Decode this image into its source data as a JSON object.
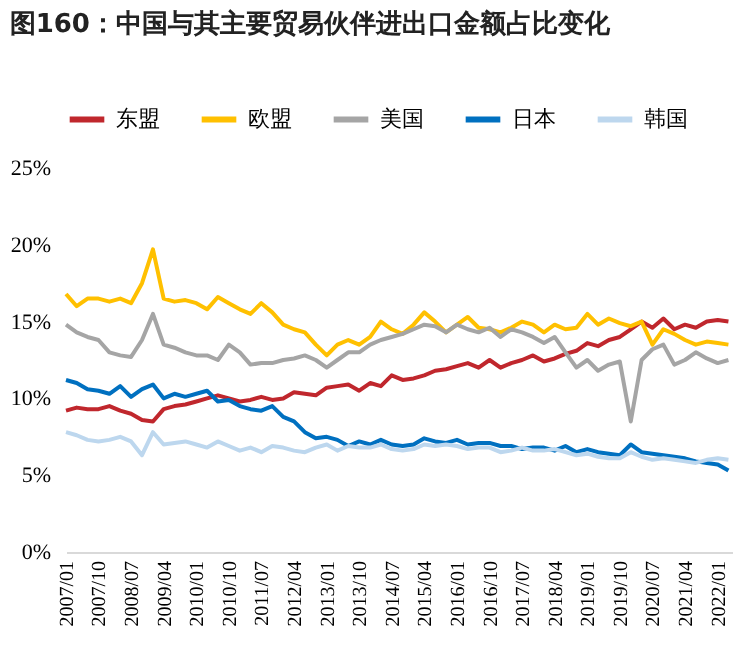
{
  "chart_data": {
    "type": "line",
    "title": "图160：中国与其主要贸易伙伴进出口金额占比变化",
    "x": [
      "2007-01",
      "2007-04",
      "2007-07",
      "2007-10",
      "2008-01",
      "2008-04",
      "2008-07",
      "2008-10",
      "2009-01",
      "2009-04",
      "2009-07",
      "2009-10",
      "2010-01",
      "2010-04",
      "2010-07",
      "2010-10",
      "2011-01",
      "2011-04",
      "2011-07",
      "2011-10",
      "2012-01",
      "2012-04",
      "2012-07",
      "2012-10",
      "2013-01",
      "2013-04",
      "2013-07",
      "2013-10",
      "2014-01",
      "2014-04",
      "2014-07",
      "2014-10",
      "2015-01",
      "2015-04",
      "2015-07",
      "2015-10",
      "2016-01",
      "2016-04",
      "2016-07",
      "2016-10",
      "2017-01",
      "2017-04",
      "2017-07",
      "2017-10",
      "2018-01",
      "2018-04",
      "2018-07",
      "2018-10",
      "2019-01",
      "2019-04",
      "2019-07",
      "2019-10",
      "2020-01",
      "2020-04",
      "2020-07",
      "2020-10",
      "2021-01",
      "2021-04",
      "2021-07",
      "2021-10",
      "2022-01",
      "2022-04"
    ],
    "series": [
      {
        "name": "东盟",
        "color": "#c0272d",
        "values": [
          9.2,
          9.4,
          9.3,
          9.3,
          9.5,
          9.2,
          9.0,
          8.6,
          8.5,
          9.3,
          9.5,
          9.6,
          9.8,
          10.0,
          10.2,
          10.0,
          9.8,
          9.9,
          10.1,
          9.9,
          10.0,
          10.4,
          10.3,
          10.2,
          10.7,
          10.8,
          10.9,
          10.5,
          11.0,
          10.8,
          11.5,
          11.2,
          11.3,
          11.5,
          11.8,
          11.9,
          12.1,
          12.3,
          12.0,
          12.5,
          12.0,
          12.3,
          12.5,
          12.8,
          12.4,
          12.6,
          12.9,
          13.1,
          13.6,
          13.4,
          13.8,
          14.0,
          14.5,
          15.0,
          14.6,
          15.2,
          14.5,
          14.8,
          14.6,
          15.0,
          15.1,
          15.0
        ]
      },
      {
        "name": "欧盟",
        "color": "#ffc000",
        "values": [
          16.8,
          16.0,
          16.5,
          16.5,
          16.3,
          16.5,
          16.2,
          17.5,
          19.7,
          16.5,
          16.3,
          16.4,
          16.2,
          15.8,
          16.6,
          16.2,
          15.8,
          15.5,
          16.2,
          15.6,
          14.8,
          14.5,
          14.3,
          13.5,
          12.8,
          13.5,
          13.8,
          13.5,
          14.0,
          15.0,
          14.5,
          14.2,
          14.8,
          15.6,
          15.0,
          14.3,
          14.8,
          15.3,
          14.6,
          14.5,
          14.3,
          14.6,
          15.0,
          14.8,
          14.3,
          14.8,
          14.5,
          14.6,
          15.5,
          14.8,
          15.2,
          14.9,
          14.7,
          15.0,
          13.5,
          14.5,
          14.2,
          13.8,
          13.5,
          13.7,
          13.6,
          13.5
        ]
      },
      {
        "name": "美国",
        "color": "#a5a5a5",
        "values": [
          14.8,
          14.3,
          14.0,
          13.8,
          13.0,
          12.8,
          12.7,
          13.8,
          15.5,
          13.5,
          13.3,
          13.0,
          12.8,
          12.8,
          12.5,
          13.5,
          13.0,
          12.2,
          12.3,
          12.3,
          12.5,
          12.6,
          12.8,
          12.5,
          12.0,
          12.5,
          13.0,
          13.0,
          13.5,
          13.8,
          14.0,
          14.2,
          14.5,
          14.8,
          14.7,
          14.3,
          14.8,
          14.5,
          14.3,
          14.6,
          14.0,
          14.5,
          14.3,
          14.0,
          13.6,
          14.0,
          13.0,
          12.0,
          12.5,
          11.8,
          12.2,
          12.4,
          8.5,
          12.5,
          13.2,
          13.5,
          12.2,
          12.5,
          13.0,
          12.6,
          12.3,
          12.5
        ]
      },
      {
        "name": "日本",
        "color": "#0070c0",
        "values": [
          11.2,
          11.0,
          10.6,
          10.5,
          10.3,
          10.8,
          10.1,
          10.6,
          10.9,
          10.0,
          10.3,
          10.1,
          10.3,
          10.5,
          9.8,
          9.9,
          9.5,
          9.3,
          9.2,
          9.5,
          8.8,
          8.5,
          7.8,
          7.4,
          7.5,
          7.3,
          6.9,
          7.2,
          7.0,
          7.3,
          7.0,
          6.9,
          7.0,
          7.4,
          7.2,
          7.1,
          7.3,
          7.0,
          7.1,
          7.1,
          6.9,
          6.9,
          6.7,
          6.8,
          6.8,
          6.6,
          6.9,
          6.5,
          6.7,
          6.5,
          6.4,
          6.3,
          7.0,
          6.5,
          6.4,
          6.3,
          6.2,
          6.1,
          5.9,
          5.8,
          5.7,
          5.3
        ]
      },
      {
        "name": "韩国",
        "color": "#bdd7ee",
        "values": [
          7.8,
          7.6,
          7.3,
          7.2,
          7.3,
          7.5,
          7.2,
          6.3,
          7.8,
          7.0,
          7.1,
          7.2,
          7.0,
          6.8,
          7.2,
          6.9,
          6.6,
          6.8,
          6.5,
          6.9,
          6.8,
          6.6,
          6.5,
          6.8,
          7.0,
          6.6,
          6.9,
          6.8,
          6.8,
          7.0,
          6.7,
          6.6,
          6.7,
          7.0,
          6.9,
          7.0,
          6.9,
          6.7,
          6.8,
          6.8,
          6.5,
          6.6,
          6.8,
          6.6,
          6.6,
          6.7,
          6.5,
          6.3,
          6.4,
          6.2,
          6.1,
          6.1,
          6.5,
          6.2,
          6.0,
          6.1,
          6.0,
          5.9,
          5.8,
          6.0,
          6.1,
          6.0
        ]
      }
    ],
    "xlim": [
      "2007-01",
      "2022-05"
    ],
    "xticks": [
      {
        "value": "2007-01",
        "label": "2007/01"
      },
      {
        "value": "2007-10",
        "label": "2007/10"
      },
      {
        "value": "2008-07",
        "label": "2008/07"
      },
      {
        "value": "2009-04",
        "label": "2009/04"
      },
      {
        "value": "2010-01",
        "label": "2010/01"
      },
      {
        "value": "2010-10",
        "label": "2010/10"
      },
      {
        "value": "2011-07",
        "label": "2011/07"
      },
      {
        "value": "2012-04",
        "label": "2012/04"
      },
      {
        "value": "2013-01",
        "label": "2013/01"
      },
      {
        "value": "2013-10",
        "label": "2013/10"
      },
      {
        "value": "2014-07",
        "label": "2014/07"
      },
      {
        "value": "2015-04",
        "label": "2015/04"
      },
      {
        "value": "2016-01",
        "label": "2016/01"
      },
      {
        "value": "2016-10",
        "label": "2016/10"
      },
      {
        "value": "2017-07",
        "label": "2017/07"
      },
      {
        "value": "2018-04",
        "label": "2018/04"
      },
      {
        "value": "2019-01",
        "label": "2019/01"
      },
      {
        "value": "2019-10",
        "label": "2019/10"
      },
      {
        "value": "2020-07",
        "label": "2020/07"
      },
      {
        "value": "2021-04",
        "label": "2021/04"
      },
      {
        "value": "2022-01",
        "label": "2022/01"
      }
    ],
    "ylim": [
      0,
      25
    ],
    "yticks": [
      {
        "value": 0,
        "label": "0%"
      },
      {
        "value": 5,
        "label": "5%"
      },
      {
        "value": 10,
        "label": "10%"
      },
      {
        "value": 15,
        "label": "15%"
      },
      {
        "value": 20,
        "label": "20%"
      },
      {
        "value": 25,
        "label": "25%"
      }
    ],
    "grid": false,
    "legend": "top"
  }
}
